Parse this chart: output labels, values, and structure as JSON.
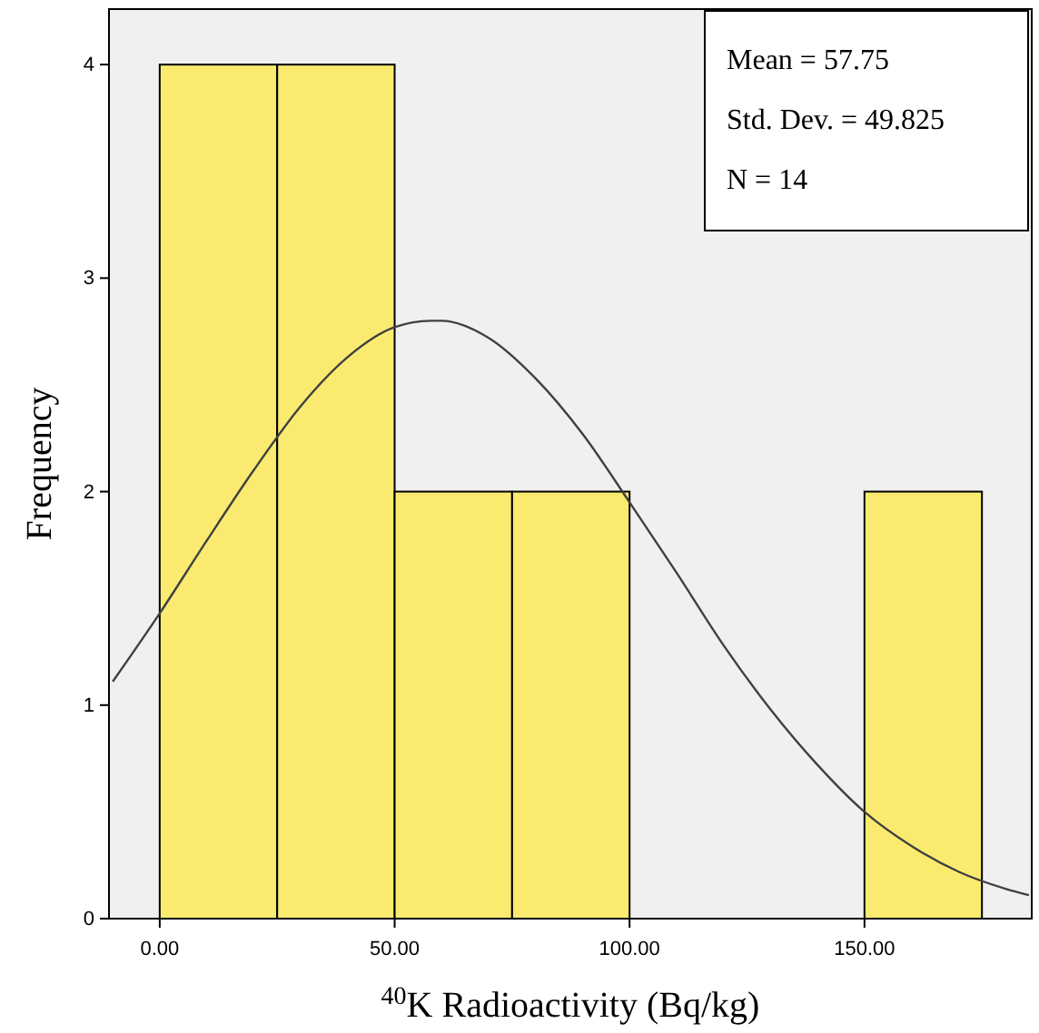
{
  "chart_data": {
    "type": "histogram",
    "xlabel": "$^{40}$K Radioactivity (Bq/kg)",
    "ylabel": "Frequency",
    "bins": [
      0,
      25,
      50,
      75,
      100,
      125,
      150,
      175
    ],
    "values": [
      4,
      4,
      2,
      2,
      0,
      0,
      2
    ],
    "color": "#faeb70",
    "series": [
      {
        "type": "line",
        "color": "#404040",
        "x": [
          -10,
          0,
          10,
          20,
          30,
          40,
          50,
          57.75,
          60,
          70,
          80,
          90,
          100,
          110,
          120,
          130,
          140,
          150,
          160,
          170,
          180,
          185
        ],
        "values": [
          1.11,
          1.43,
          1.77,
          2.1,
          2.4,
          2.63,
          2.77,
          2.8,
          2.8,
          2.72,
          2.53,
          2.27,
          1.95,
          1.62,
          1.28,
          0.98,
          0.72,
          0.5,
          0.34,
          0.22,
          0.14,
          0.11
        ]
      }
    ],
    "xlim": [
      -10.8,
      185.6
    ],
    "ylim": [
      0,
      4.26
    ],
    "xticks": [
      {
        "value": 0,
        "label": "0.00"
      },
      {
        "value": 50,
        "label": "50.00"
      },
      {
        "value": 100,
        "label": "100.00"
      },
      {
        "value": 150,
        "label": "150.00"
      }
    ],
    "yticks": [
      0,
      1,
      2,
      3,
      4
    ],
    "grid": false,
    "annotations": [
      "Mean = 57.75",
      "Std. Dev. = 49.825",
      "N = 14"
    ]
  }
}
